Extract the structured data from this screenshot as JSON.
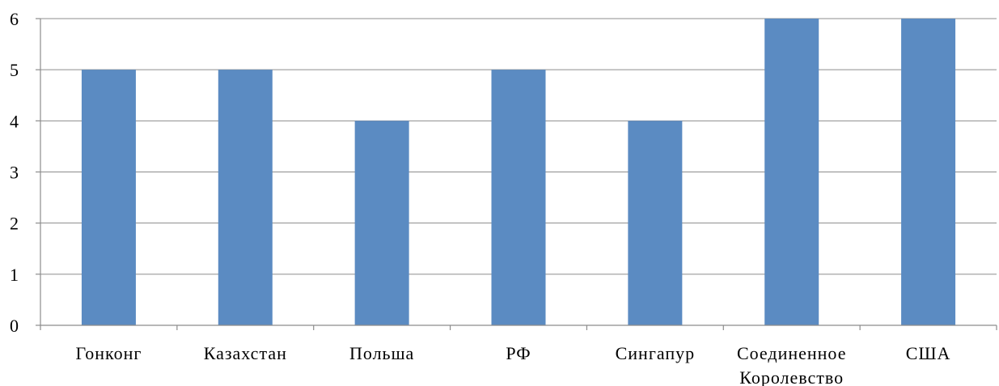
{
  "chart_data": {
    "type": "bar",
    "categories": [
      [
        "Гонконг"
      ],
      [
        "Казахстан"
      ],
      [
        "Польша"
      ],
      [
        "РФ"
      ],
      [
        "Сингапур"
      ],
      [
        "Соединенное",
        "Королевство"
      ],
      [
        "США"
      ]
    ],
    "values": [
      5,
      5,
      4,
      5,
      4,
      6,
      6
    ],
    "ylim": [
      0,
      6
    ],
    "yticks": [
      0,
      1,
      2,
      3,
      4,
      5,
      6
    ],
    "grid": true,
    "bar_color": "#5b8bc2",
    "gridline_color": "#8c8c8c"
  }
}
